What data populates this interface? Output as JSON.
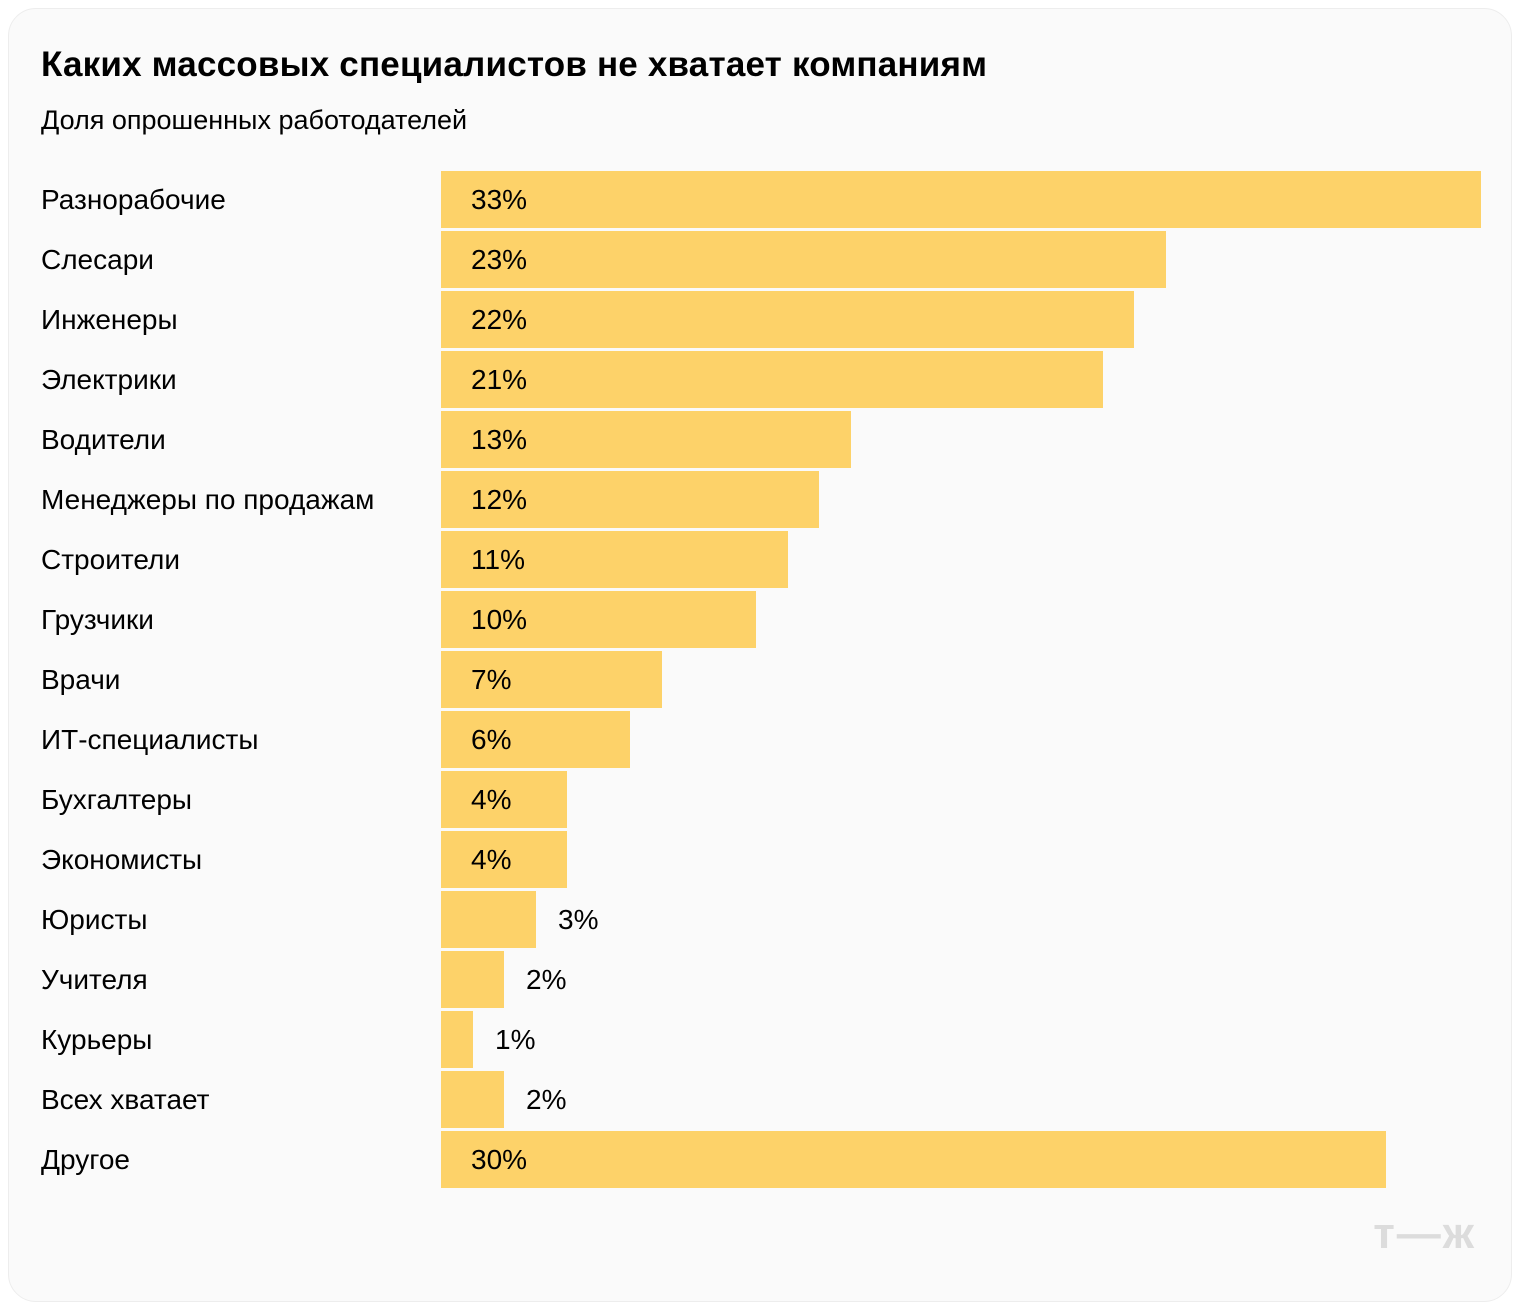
{
  "page": {
    "title": "Каких массовых специалистов не хватает компаниям",
    "subtitle": "Доля опрошенных работодателей",
    "logo_text": "т—ж"
  },
  "colors": {
    "bar": "#FDD269",
    "text": "#000000",
    "logo": "#DCDCDC",
    "card_bg": "#FAFAFA",
    "page_bg": "#FFFFFF"
  },
  "chart_data": {
    "type": "bar",
    "orientation": "horizontal",
    "title": "Каких массовых специалистов не хватает компаниям",
    "subtitle": "Доля опрошенных работодателей",
    "unit": "%",
    "xlabel": "",
    "ylabel": "",
    "xlim": [
      0,
      33
    ],
    "grid": false,
    "legend": false,
    "categories": [
      "Разнорабочие",
      "Слесари",
      "Инженеры",
      "Электрики",
      "Водители",
      "Менеджеры по продажам",
      "Строители",
      "Грузчики",
      "Врачи",
      "ИТ-специалисты",
      "Бухгалтеры",
      "Экономисты",
      "Юристы",
      "Учителя",
      "Курьеры",
      "Всех хватает",
      "Другое"
    ],
    "values": [
      33,
      23,
      22,
      21,
      13,
      12,
      11,
      10,
      7,
      6,
      4,
      4,
      3,
      2,
      1,
      2,
      30
    ],
    "value_labels": [
      "33%",
      "23%",
      "22%",
      "21%",
      "13%",
      "12%",
      "11%",
      "10%",
      "7%",
      "6%",
      "4%",
      "4%",
      "3%",
      "2%",
      "1%",
      "2%",
      "30%"
    ]
  }
}
